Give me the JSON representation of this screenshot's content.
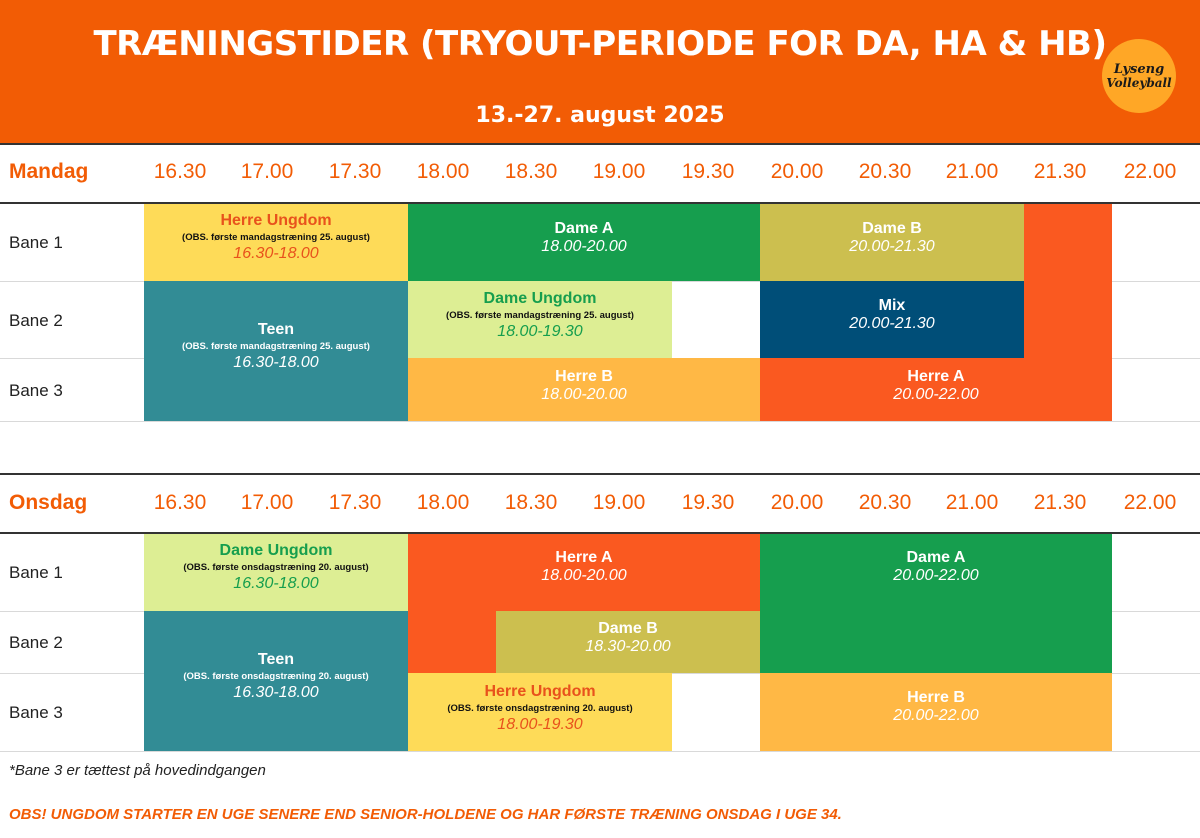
{
  "title": "TRÆNINGSTIDER (TRYOUT-PERIODE FOR DA, HA & HB)",
  "subtitle": "13.-27. august 2025",
  "logo": {
    "line1": "Lyseng",
    "line2": "Volleyball"
  },
  "colors": {
    "brand_orange": "#f25c05",
    "yellow": "#fedb58",
    "green": "#169e4e",
    "olive": "#ccbf4f",
    "red_orange": "#fa5920",
    "teal": "#328c95",
    "light_green": "#ddee94",
    "navy": "#004e78",
    "amber": "#ffb845"
  },
  "times": [
    "16.30",
    "17.00",
    "17.30",
    "18.00",
    "18.30",
    "19.00",
    "19.30",
    "20.00",
    "20.30",
    "21.00",
    "21.30",
    "22.00"
  ],
  "mandag": {
    "day": "Mandag",
    "courts": [
      "Bane 1",
      "Bane 2",
      "Bane 3"
    ],
    "blocks": [
      {
        "name": "Herre Ungdom",
        "note": "(OBS. første mandagstræning 25. august)",
        "time": "16.30-18.00"
      },
      {
        "name": "Dame A",
        "time": "18.00-20.00"
      },
      {
        "name": "Dame B",
        "time": "20.00-21.30"
      },
      {
        "name": "Teen",
        "note": "(OBS. første mandagstræning 25. august)",
        "time": "16.30-18.00"
      },
      {
        "name": "Dame Ungdom",
        "note": "(OBS. første mandagstræning 25. august)",
        "time": "18.00-19.30"
      },
      {
        "name": "Mix",
        "time": "20.00-21.30"
      },
      {
        "name": "Herre B",
        "time": "18.00-20.00"
      },
      {
        "name": "Herre A",
        "time": "20.00-22.00"
      }
    ]
  },
  "onsdag": {
    "day": "Onsdag",
    "courts": [
      "Bane 1",
      "Bane 2",
      "Bane 3"
    ],
    "blocks": [
      {
        "name": "Dame Ungdom",
        "note": "(OBS. første onsdagstræning 20. august)",
        "time": "16.30-18.00"
      },
      {
        "name": "Herre A",
        "time": "18.00-20.00"
      },
      {
        "name": "Dame A",
        "time": "20.00-22.00"
      },
      {
        "name": "Dame B",
        "time": "18.30-20.00"
      },
      {
        "name": "Teen",
        "note": "(OBS. første onsdagstræning 20. august)",
        "time": "16.30-18.00"
      },
      {
        "name": "Herre Ungdom",
        "note": "(OBS. første onsdagstræning 20. august)",
        "time": "18.00-19.30"
      },
      {
        "name": "Herre B",
        "time": "20.00-22.00"
      }
    ]
  },
  "footnote": "*Bane 3 er tættest på hovedindgangen",
  "obs_note": "OBS! UNGDOM STARTER EN UGE SENERE END SENIOR-HOLDENE OG HAR FØRSTE TRÆNING ONSDAG I UGE 34."
}
